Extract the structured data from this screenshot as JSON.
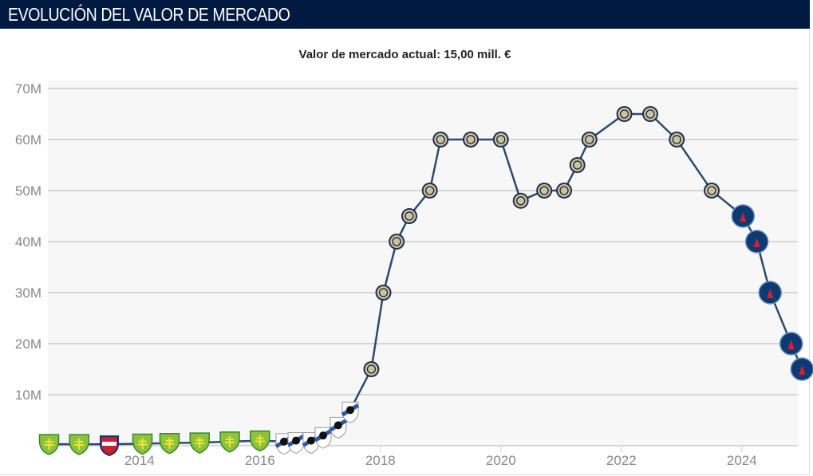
{
  "header": {
    "title": "EVOLUCIÓN DEL VALOR DE MERCADO"
  },
  "chart_data": {
    "type": "line",
    "title": "Valor de mercado actual: 15,00 mill. €",
    "xlabel": "",
    "ylabel": "",
    "ylim": [
      0,
      70
    ],
    "xlim": [
      2012.48,
      2024.93
    ],
    "y_ticks": [
      "10M",
      "20M",
      "30M",
      "40M",
      "50M",
      "60M",
      "70M"
    ],
    "x_ticks": [
      "2014",
      "2016",
      "2018",
      "2020",
      "2022",
      "2024"
    ],
    "grid": true,
    "line_color": "#2f4a6e",
    "points": [
      {
        "x": 2012.5,
        "y": 0.3,
        "club": "MŠK Žilina"
      },
      {
        "x": 2013.0,
        "y": 0.3,
        "club": "MŠK Žilina"
      },
      {
        "x": 2013.5,
        "y": 0.3,
        "club": "FC ViOn"
      },
      {
        "x": 2014.05,
        "y": 0.4,
        "club": "MŠK Žilina"
      },
      {
        "x": 2014.5,
        "y": 0.5,
        "club": "MŠK Žilina"
      },
      {
        "x": 2015.0,
        "y": 0.6,
        "club": "MŠK Žilina"
      },
      {
        "x": 2015.5,
        "y": 0.8,
        "club": "MŠK Žilina"
      },
      {
        "x": 2016.0,
        "y": 1.0,
        "club": "MŠK Žilina"
      },
      {
        "x": 2016.4,
        "y": 0.8,
        "club": "Sampdoria"
      },
      {
        "x": 2016.6,
        "y": 1.0,
        "club": "Sampdoria"
      },
      {
        "x": 2016.85,
        "y": 1.0,
        "club": "Sampdoria"
      },
      {
        "x": 2017.05,
        "y": 2.0,
        "club": "Sampdoria"
      },
      {
        "x": 2017.3,
        "y": 4.0,
        "club": "Sampdoria"
      },
      {
        "x": 2017.5,
        "y": 7.0,
        "club": "Sampdoria"
      },
      {
        "x": 2017.85,
        "y": 15,
        "club": "Inter"
      },
      {
        "x": 2018.05,
        "y": 30,
        "club": "Inter"
      },
      {
        "x": 2018.27,
        "y": 40,
        "club": "Inter"
      },
      {
        "x": 2018.48,
        "y": 45,
        "club": "Inter"
      },
      {
        "x": 2018.82,
        "y": 50,
        "club": "Inter"
      },
      {
        "x": 2019.0,
        "y": 60,
        "club": "Inter"
      },
      {
        "x": 2019.5,
        "y": 60,
        "club": "Inter"
      },
      {
        "x": 2020.0,
        "y": 60,
        "club": "Inter"
      },
      {
        "x": 2020.33,
        "y": 48,
        "club": "Inter"
      },
      {
        "x": 2020.72,
        "y": 50,
        "club": "Inter"
      },
      {
        "x": 2021.05,
        "y": 50,
        "club": "Inter"
      },
      {
        "x": 2021.27,
        "y": 55,
        "club": "Inter"
      },
      {
        "x": 2021.47,
        "y": 60,
        "club": "Inter"
      },
      {
        "x": 2022.05,
        "y": 65,
        "club": "Inter"
      },
      {
        "x": 2022.48,
        "y": 65,
        "club": "Inter"
      },
      {
        "x": 2022.92,
        "y": 60,
        "club": "Inter"
      },
      {
        "x": 2023.5,
        "y": 50,
        "club": "Inter"
      },
      {
        "x": 2024.02,
        "y": 45,
        "club": "PSG"
      },
      {
        "x": 2024.25,
        "y": 40,
        "club": "PSG"
      },
      {
        "x": 2024.47,
        "y": 30,
        "club": "PSG"
      },
      {
        "x": 2024.82,
        "y": 20,
        "club": "PSG"
      },
      {
        "x": 2025.0,
        "y": 15,
        "club": "PSG"
      }
    ]
  }
}
